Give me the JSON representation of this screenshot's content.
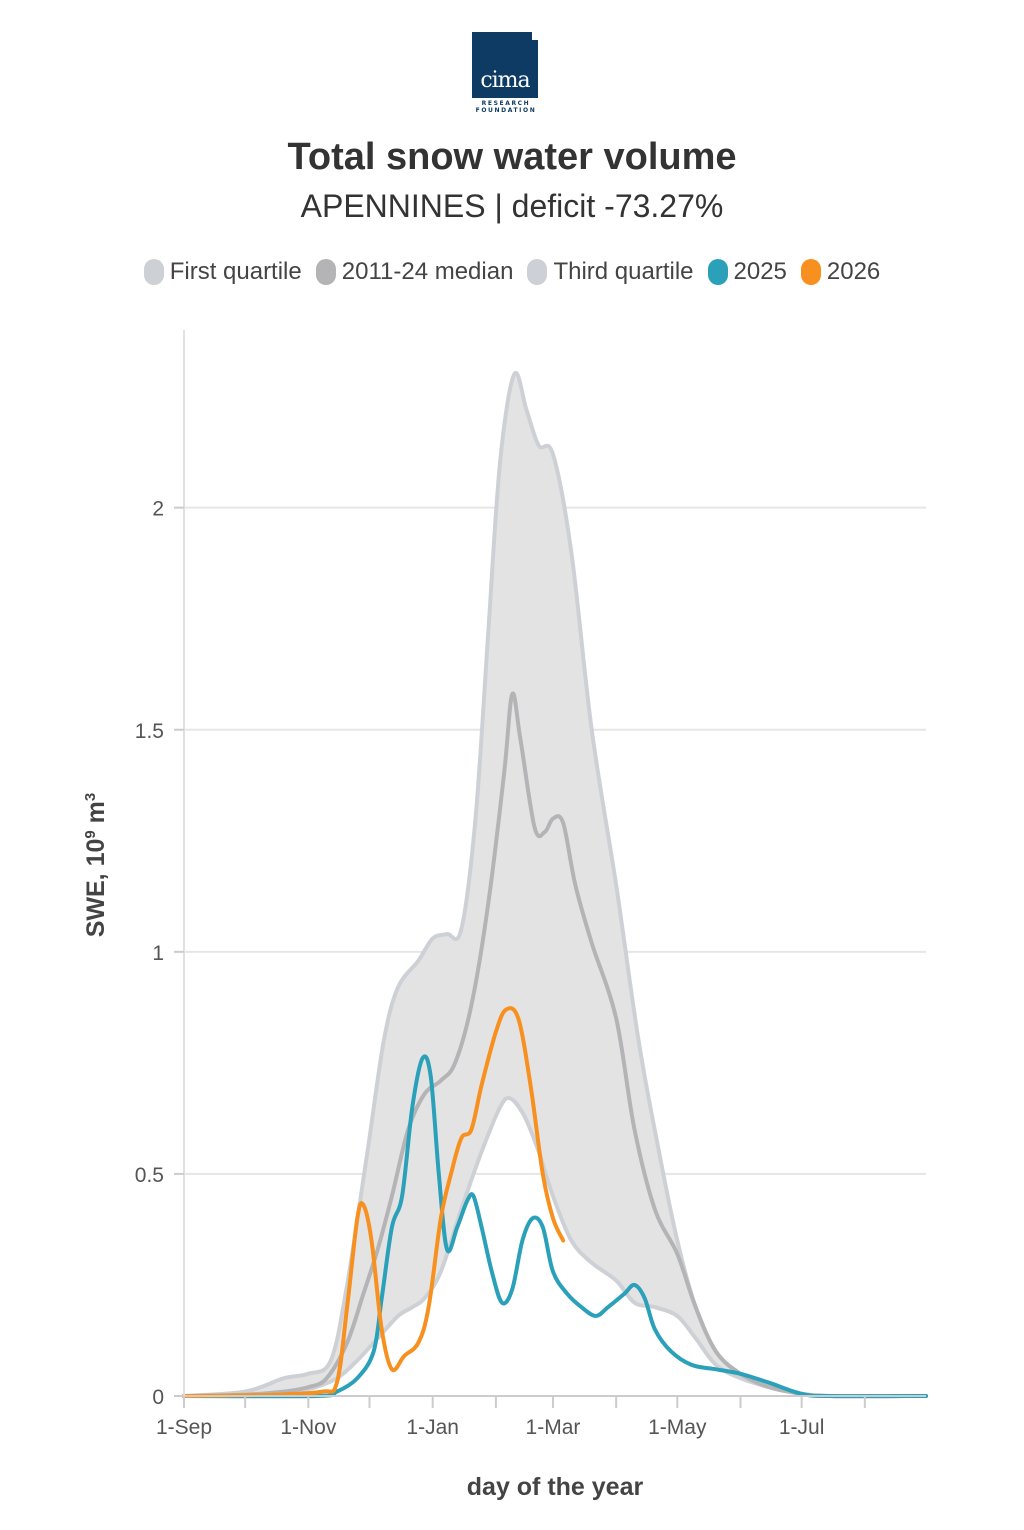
{
  "logo": {
    "word": "cima",
    "line1": "RESEARCH",
    "line2": "FOUNDATION",
    "color": "#0d3b63"
  },
  "colors": {
    "band": "#e3e3e4",
    "quartile_line": "#cdd1d6",
    "median": "#b4b4b6",
    "y2025": "#2aa0b9",
    "y2026": "#f7901e",
    "grid": "#e6e6e6"
  },
  "chart_data": {
    "type": "line",
    "title": "Total snow water volume",
    "subtitle": "APENNINES | deficit -73.27%",
    "xlabel": "day of the year",
    "ylabel_main": "SWE, 10",
    "ylabel_sup": "9",
    "ylabel_tail": " m",
    "ylabel_sup2": "3",
    "xlim": [
      "2025-09-01",
      "2026-08-31"
    ],
    "ylim": [
      0,
      2.4
    ],
    "grid": true,
    "legend_position": "top",
    "x_ticks": [
      {
        "date": "2025-09-01",
        "label": "1-Sep"
      },
      {
        "date": "2025-11-01",
        "label": "1-Nov"
      },
      {
        "date": "2026-01-01",
        "label": "1-Jan"
      },
      {
        "date": "2026-03-01",
        "label": "1-Mar"
      },
      {
        "date": "2026-05-01",
        "label": "1-May"
      },
      {
        "date": "2026-07-01",
        "label": "1-Jul"
      }
    ],
    "x_minor_ticks": [
      "2025-10-01",
      "2025-12-01",
      "2026-02-01",
      "2026-04-01",
      "2026-06-01",
      "2026-08-01"
    ],
    "y_ticks": [
      {
        "value": 0,
        "label": "0"
      },
      {
        "value": 0.5,
        "label": "0.5"
      },
      {
        "value": 1,
        "label": "1"
      },
      {
        "value": 1.5,
        "label": "1.5"
      },
      {
        "value": 2,
        "label": "2"
      }
    ],
    "series": [
      {
        "name": "First quartile",
        "key": "q1",
        "points": [
          [
            "2025-09-01",
            0
          ],
          [
            "2025-10-15",
            0.005
          ],
          [
            "2025-11-01",
            0.015
          ],
          [
            "2025-11-15",
            0.04
          ],
          [
            "2025-11-25",
            0.08
          ],
          [
            "2025-12-05",
            0.13
          ],
          [
            "2025-12-15",
            0.18
          ],
          [
            "2025-12-22",
            0.2
          ],
          [
            "2025-12-28",
            0.22
          ],
          [
            "2026-01-05",
            0.28
          ],
          [
            "2026-01-15",
            0.42
          ],
          [
            "2026-01-25",
            0.55
          ],
          [
            "2026-02-03",
            0.65
          ],
          [
            "2026-02-08",
            0.67
          ],
          [
            "2026-02-15",
            0.63
          ],
          [
            "2026-02-22",
            0.55
          ],
          [
            "2026-03-01",
            0.45
          ],
          [
            "2026-03-10",
            0.35
          ],
          [
            "2026-03-20",
            0.3
          ],
          [
            "2026-04-01",
            0.26
          ],
          [
            "2026-04-10",
            0.21
          ],
          [
            "2026-04-20",
            0.2
          ],
          [
            "2026-05-01",
            0.18
          ],
          [
            "2026-05-10",
            0.13
          ],
          [
            "2026-05-20",
            0.07
          ],
          [
            "2026-06-01",
            0.04
          ],
          [
            "2026-06-15",
            0.02
          ],
          [
            "2026-07-01",
            0.005
          ],
          [
            "2026-07-15",
            0
          ],
          [
            "2026-08-31",
            0
          ]
        ]
      },
      {
        "name": "2011-24 median",
        "key": "median",
        "points": [
          [
            "2025-09-01",
            0
          ],
          [
            "2025-10-01",
            0.003
          ],
          [
            "2025-10-20",
            0.01
          ],
          [
            "2025-11-01",
            0.02
          ],
          [
            "2025-11-10",
            0.04
          ],
          [
            "2025-11-20",
            0.12
          ],
          [
            "2025-11-28",
            0.23
          ],
          [
            "2025-12-05",
            0.33
          ],
          [
            "2025-12-12",
            0.45
          ],
          [
            "2025-12-20",
            0.6
          ],
          [
            "2025-12-28",
            0.68
          ],
          [
            "2026-01-05",
            0.71
          ],
          [
            "2026-01-12",
            0.75
          ],
          [
            "2026-01-20",
            0.88
          ],
          [
            "2026-01-28",
            1.1
          ],
          [
            "2026-02-05",
            1.4
          ],
          [
            "2026-02-09",
            1.58
          ],
          [
            "2026-02-13",
            1.48
          ],
          [
            "2026-02-20",
            1.28
          ],
          [
            "2026-02-25",
            1.27
          ],
          [
            "2026-03-01",
            1.3
          ],
          [
            "2026-03-06",
            1.29
          ],
          [
            "2026-03-12",
            1.15
          ],
          [
            "2026-03-20",
            1.02
          ],
          [
            "2026-04-01",
            0.85
          ],
          [
            "2026-04-10",
            0.6
          ],
          [
            "2026-04-20",
            0.42
          ],
          [
            "2026-05-01",
            0.32
          ],
          [
            "2026-05-10",
            0.2
          ],
          [
            "2026-05-20",
            0.1
          ],
          [
            "2026-06-01",
            0.05
          ],
          [
            "2026-06-15",
            0.02
          ],
          [
            "2026-07-01",
            0.005
          ],
          [
            "2026-07-15",
            0
          ],
          [
            "2026-08-31",
            0
          ]
        ]
      },
      {
        "name": "Third quartile",
        "key": "q3",
        "points": [
          [
            "2025-09-01",
            0
          ],
          [
            "2025-10-01",
            0.01
          ],
          [
            "2025-10-20",
            0.04
          ],
          [
            "2025-11-01",
            0.05
          ],
          [
            "2025-11-12",
            0.08
          ],
          [
            "2025-11-20",
            0.25
          ],
          [
            "2025-11-30",
            0.55
          ],
          [
            "2025-12-08",
            0.8
          ],
          [
            "2025-12-15",
            0.92
          ],
          [
            "2025-12-25",
            0.98
          ],
          [
            "2026-01-01",
            1.03
          ],
          [
            "2026-01-08",
            1.04
          ],
          [
            "2026-01-15",
            1.05
          ],
          [
            "2026-01-22",
            1.3
          ],
          [
            "2026-01-28",
            1.7
          ],
          [
            "2026-02-03",
            2.1
          ],
          [
            "2026-02-10",
            2.3
          ],
          [
            "2026-02-16",
            2.22
          ],
          [
            "2026-02-22",
            2.14
          ],
          [
            "2026-03-01",
            2.12
          ],
          [
            "2026-03-10",
            1.9
          ],
          [
            "2026-03-20",
            1.5
          ],
          [
            "2026-04-01",
            1.15
          ],
          [
            "2026-04-12",
            0.8
          ],
          [
            "2026-04-22",
            0.55
          ],
          [
            "2026-05-01",
            0.35
          ],
          [
            "2026-05-10",
            0.2
          ],
          [
            "2026-05-20",
            0.1
          ],
          [
            "2026-06-01",
            0.05
          ],
          [
            "2026-06-15",
            0.02
          ],
          [
            "2026-07-01",
            0.005
          ],
          [
            "2026-07-15",
            0
          ],
          [
            "2026-08-31",
            0
          ]
        ]
      },
      {
        "name": "2025",
        "key": "y2025",
        "points": [
          [
            "2025-09-01",
            0
          ],
          [
            "2025-11-05",
            0
          ],
          [
            "2025-11-15",
            0.01
          ],
          [
            "2025-11-25",
            0.04
          ],
          [
            "2025-12-03",
            0.1
          ],
          [
            "2025-12-07",
            0.22
          ],
          [
            "2025-12-12",
            0.38
          ],
          [
            "2025-12-17",
            0.45
          ],
          [
            "2025-12-22",
            0.65
          ],
          [
            "2025-12-27",
            0.76
          ],
          [
            "2025-12-31",
            0.72
          ],
          [
            "2026-01-04",
            0.5
          ],
          [
            "2026-01-08",
            0.33
          ],
          [
            "2026-01-13",
            0.38
          ],
          [
            "2026-01-18",
            0.44
          ],
          [
            "2026-01-21",
            0.45
          ],
          [
            "2026-01-25",
            0.38
          ],
          [
            "2026-01-30",
            0.28
          ],
          [
            "2026-02-04",
            0.21
          ],
          [
            "2026-02-09",
            0.24
          ],
          [
            "2026-02-14",
            0.35
          ],
          [
            "2026-02-19",
            0.4
          ],
          [
            "2026-02-24",
            0.38
          ],
          [
            "2026-03-01",
            0.28
          ],
          [
            "2026-03-08",
            0.23
          ],
          [
            "2026-03-15",
            0.2
          ],
          [
            "2026-03-22",
            0.18
          ],
          [
            "2026-03-28",
            0.2
          ],
          [
            "2026-04-05",
            0.23
          ],
          [
            "2026-04-10",
            0.25
          ],
          [
            "2026-04-15",
            0.22
          ],
          [
            "2026-04-20",
            0.15
          ],
          [
            "2026-04-28",
            0.1
          ],
          [
            "2026-05-08",
            0.07
          ],
          [
            "2026-05-20",
            0.06
          ],
          [
            "2026-06-01",
            0.05
          ],
          [
            "2026-06-15",
            0.03
          ],
          [
            "2026-07-01",
            0.005
          ],
          [
            "2026-07-15",
            0
          ],
          [
            "2026-08-31",
            0
          ]
        ]
      },
      {
        "name": "2026",
        "key": "y2026",
        "points": [
          [
            "2025-09-01",
            0
          ],
          [
            "2025-10-15",
            0.003
          ],
          [
            "2025-11-08",
            0.01
          ],
          [
            "2025-11-15",
            0.03
          ],
          [
            "2025-11-20",
            0.2
          ],
          [
            "2025-11-25",
            0.4
          ],
          [
            "2025-11-28",
            0.43
          ],
          [
            "2025-12-02",
            0.35
          ],
          [
            "2025-12-07",
            0.15
          ],
          [
            "2025-12-12",
            0.06
          ],
          [
            "2025-12-18",
            0.09
          ],
          [
            "2025-12-25",
            0.12
          ],
          [
            "2025-12-30",
            0.2
          ],
          [
            "2026-01-05",
            0.4
          ],
          [
            "2026-01-10",
            0.5
          ],
          [
            "2026-01-15",
            0.58
          ],
          [
            "2026-01-20",
            0.6
          ],
          [
            "2026-01-25",
            0.7
          ],
          [
            "2026-02-01",
            0.82
          ],
          [
            "2026-02-06",
            0.87
          ],
          [
            "2026-02-12",
            0.85
          ],
          [
            "2026-02-18",
            0.7
          ],
          [
            "2026-02-24",
            0.5
          ],
          [
            "2026-03-01",
            0.4
          ],
          [
            "2026-03-06",
            0.35
          ]
        ]
      }
    ]
  }
}
